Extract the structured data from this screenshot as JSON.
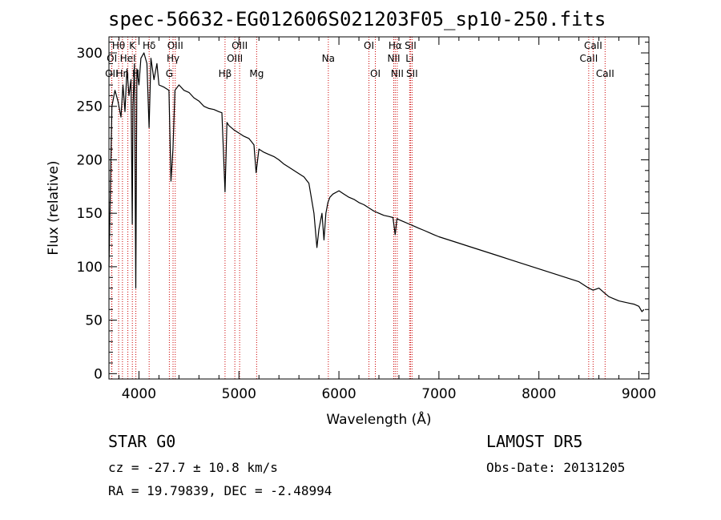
{
  "header": {
    "title": "spec-56632-EG012606S021203F05_sp10-250.fits"
  },
  "footer": {
    "object_type": "STAR    G0",
    "redshift": "cz = -27.7 ± 10.8 km/s",
    "coords": "RA =  19.79839, DEC =  -2.48994",
    "survey": "LAMOST DR5",
    "obs_date": "Obs-Date: 20131205"
  },
  "chart_data": {
    "type": "line",
    "title": "spec-56632-EG012606S021203F05_sp10-250.fits",
    "xlabel": "Wavelength (Å)",
    "ylabel": "Flux (relative)",
    "xlim": [
      3700,
      9100
    ],
    "ylim": [
      -5,
      315
    ],
    "xticks": [
      4000,
      5000,
      6000,
      7000,
      8000,
      9000
    ],
    "yticks": [
      0,
      50,
      100,
      150,
      200,
      250,
      300
    ],
    "grid": false,
    "series": [
      {
        "x": [
          3700,
          3730,
          3760,
          3790,
          3820,
          3840,
          3860,
          3880,
          3900,
          3920,
          3933,
          3940,
          3955,
          3968,
          3980,
          4000,
          4020,
          4050,
          4080,
          4101,
          4120,
          4150,
          4180,
          4200,
          4250,
          4300,
          4320,
          4340,
          4360,
          4400,
          4450,
          4500,
          4550,
          4600,
          4650,
          4700,
          4750,
          4800,
          4830,
          4861,
          4880,
          4900,
          4950,
          5000,
          5050,
          5100,
          5150,
          5172,
          5200,
          5250,
          5300,
          5350,
          5400,
          5450,
          5500,
          5550,
          5600,
          5650,
          5700,
          5750,
          5780,
          5800,
          5830,
          5850,
          5870,
          5890,
          5910,
          5940,
          6000,
          6050,
          6100,
          6150,
          6200,
          6250,
          6300,
          6350,
          6400,
          6450,
          6500,
          6540,
          6563,
          6580,
          6600,
          6650,
          6700,
          6750,
          6800,
          6850,
          6900,
          6950,
          7000,
          7100,
          7200,
          7300,
          7400,
          7500,
          7600,
          7700,
          7800,
          7900,
          8000,
          8100,
          8200,
          8300,
          8400,
          8498,
          8542,
          8600,
          8662,
          8700,
          8750,
          8800,
          8850,
          8900,
          8950,
          9000,
          9030,
          9050
        ],
        "y": [
          100,
          250,
          265,
          255,
          240,
          270,
          245,
          285,
          260,
          275,
          140,
          250,
          290,
          80,
          285,
          270,
          295,
          300,
          290,
          230,
          295,
          275,
          290,
          270,
          268,
          265,
          180,
          210,
          265,
          270,
          265,
          263,
          258,
          255,
          250,
          248,
          247,
          245,
          244,
          170,
          235,
          232,
          228,
          225,
          222,
          220,
          214,
          188,
          210,
          207,
          205,
          203,
          200,
          196,
          193,
          190,
          187,
          184,
          178,
          150,
          118,
          135,
          150,
          125,
          150,
          160,
          165,
          168,
          171,
          168,
          165,
          163,
          160,
          158,
          155,
          152,
          150,
          148,
          147,
          146,
          130,
          145,
          144,
          142,
          140,
          138,
          136,
          134,
          132,
          130,
          128,
          125,
          122,
          119,
          116,
          113,
          110,
          107,
          104,
          101,
          98,
          95,
          92,
          89,
          86,
          80,
          78,
          80,
          75,
          72,
          70,
          68,
          67,
          66,
          65,
          63,
          58,
          60
        ]
      }
    ],
    "line_labels": [
      {
        "text": "OI",
        "wl": 3729,
        "row": 2
      },
      {
        "text": "OII",
        "wl": 3727,
        "row": 3
      },
      {
        "text": "Hθ",
        "wl": 3797,
        "row": 1
      },
      {
        "text": "Hη",
        "wl": 3835,
        "row": 3
      },
      {
        "text": "HeI",
        "wl": 3889,
        "row": 2
      },
      {
        "text": "K",
        "wl": 3934,
        "row": 1
      },
      {
        "text": "H",
        "wl": 3969,
        "row": 3
      },
      {
        "text": "Hδ",
        "wl": 4102,
        "row": 1
      },
      {
        "text": "G",
        "wl": 4304,
        "row": 3
      },
      {
        "text": "Hγ",
        "wl": 4341,
        "row": 2
      },
      {
        "text": "OIII",
        "wl": 4363,
        "row": 1
      },
      {
        "text": "Hβ",
        "wl": 4861,
        "row": 3
      },
      {
        "text": "OIII",
        "wl": 4959,
        "row": 2
      },
      {
        "text": "OIII",
        "wl": 5007,
        "row": 1
      },
      {
        "text": "Mg",
        "wl": 5177,
        "row": 3
      },
      {
        "text": "Na",
        "wl": 5894,
        "row": 2
      },
      {
        "text": "OI",
        "wl": 6300,
        "row": 1
      },
      {
        "text": "OI",
        "wl": 6364,
        "row": 3
      },
      {
        "text": "NII",
        "wl": 6548,
        "row": 2
      },
      {
        "text": "NII",
        "wl": 6583,
        "row": 3
      },
      {
        "text": "Hα",
        "wl": 6563,
        "row": 1
      },
      {
        "text": "Li",
        "wl": 6707,
        "row": 2
      },
      {
        "text": "SII",
        "wl": 6716,
        "row": 1
      },
      {
        "text": "SII",
        "wl": 6731,
        "row": 3
      },
      {
        "text": "CaII",
        "wl": 8498,
        "row": 2
      },
      {
        "text": "CaII",
        "wl": 8542,
        "row": 1
      },
      {
        "text": "CaII",
        "wl": 8662,
        "row": 3
      }
    ]
  }
}
